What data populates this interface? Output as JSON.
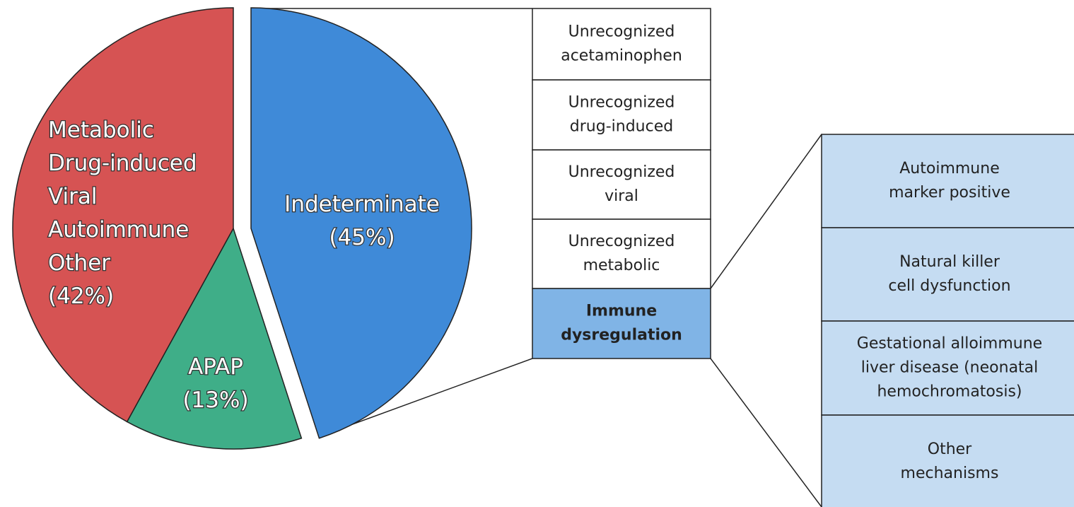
{
  "chart_data": {
    "type": "pie",
    "categories": [
      [
        "Indeterminate"
      ],
      [
        "APAP"
      ],
      [
        "Metabolic",
        "Drug-induced",
        "Viral",
        "Autoimmune",
        "Other"
      ]
    ],
    "values": [
      45,
      13,
      42
    ],
    "value_labels": [
      "(45%)",
      "(13%)",
      "(42%)"
    ],
    "colors": [
      "#3f8ad8",
      "#3fae88",
      "#d65353"
    ],
    "breakdown": {
      "items": [
        [
          "Unrecognized",
          "acetaminophen"
        ],
        [
          "Unrecognized",
          "drug-induced"
        ],
        [
          "Unrecognized",
          "viral"
        ],
        [
          "Unrecognized",
          "metabolic"
        ],
        [
          "Immune",
          "dysregulation"
        ]
      ],
      "highlighted": 4,
      "highlight_color": "#80b4e6"
    },
    "sub_breakdown": {
      "items": [
        [
          "Autoimmune",
          "marker positive"
        ],
        [
          "Natural killer",
          "cell dysfunction"
        ],
        [
          "Gestational alloimmune",
          "liver disease (neonatal",
          "hemochromatosis)"
        ],
        [
          "Other",
          "mechanisms"
        ]
      ],
      "color": "#c5dcf2"
    }
  }
}
